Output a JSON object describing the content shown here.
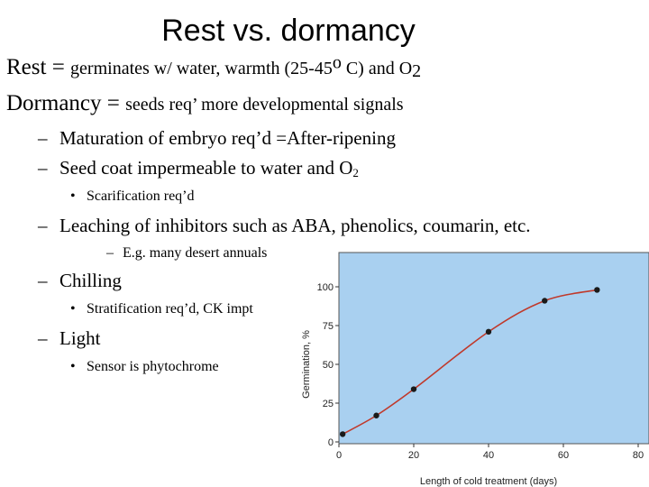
{
  "title": "Rest vs. dormancy",
  "lines": {
    "rest_term": "Rest = ",
    "rest_text": "germinates w/ water, warmth (25-45",
    "rest_degree": "o",
    "rest_tail": " C) and O",
    "rest_sub": "2",
    "dormancy_term": "Dormancy = ",
    "dormancy_text": "seeds req’ more developmental signals",
    "maturation": "Maturation of embryo req’d =After-ripening",
    "seedcoat": "Seed coat impermeable to water and O",
    "seedcoat_sub": "2",
    "scarification": "Scarification req’d",
    "leaching": "Leaching of inhibitors such as ABA, phenolics, coumarin, etc.",
    "desert": "E.g. many desert annuals",
    "chilling": "Chilling",
    "stratification": "Stratification req’d, CK impt",
    "light": "Light",
    "phytochrome": "Sensor is phytochrome"
  },
  "markers": {
    "dash": "–",
    "bullet": "•"
  },
  "chart_data": {
    "type": "line",
    "xlabel": "Length of cold treatment (days)",
    "ylabel": "Germination, %",
    "xlim": [
      0,
      80
    ],
    "ylim": [
      0,
      100
    ],
    "xticks": [
      0,
      20,
      40,
      60,
      80
    ],
    "yticks": [
      0,
      25,
      50,
      75,
      100
    ],
    "grid": false,
    "background": "#a9d0f0",
    "line_color": "#c0392b",
    "point_color": "#1a1a1a",
    "series": [
      {
        "x": [
          1,
          10,
          20,
          40,
          55,
          69
        ],
        "y": [
          5,
          17,
          34,
          71,
          91,
          98
        ]
      }
    ]
  }
}
